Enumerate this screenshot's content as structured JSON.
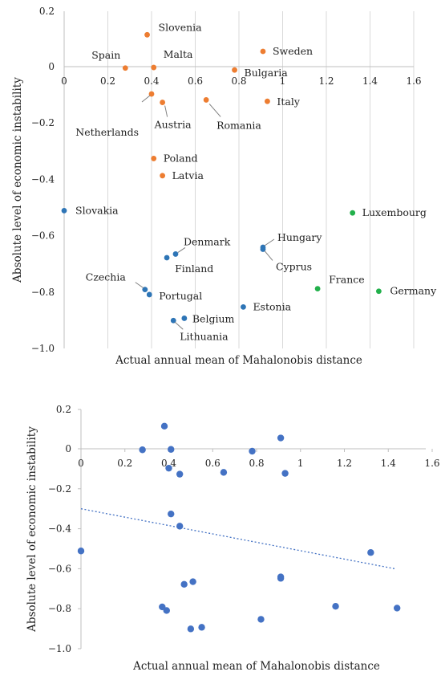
{
  "colors": {
    "cluster_blue": "#2e75b6",
    "cluster_orange": "#ed7d31",
    "cluster_green": "#22b04b",
    "scatter_blue": "#4472c4",
    "trend": "#4472c4"
  },
  "chart_data": [
    {
      "type": "scatter",
      "title": "",
      "xlabel": "Actual annual mean of Mahalonobis distance",
      "ylabel": "Absolute level of economic instability",
      "xlim": [
        0,
        1.6
      ],
      "ylim": [
        -1.0,
        0.2
      ],
      "x_ticks": [
        "0",
        "0.2",
        "0.4",
        "0.6",
        "0.8",
        "1",
        "1.2",
        "1.4",
        "1.6"
      ],
      "y_ticks": [
        "0.2",
        "0",
        "−0.2",
        "−0.4",
        "−0.6",
        "−0.8",
        "−1.0"
      ],
      "grid": "vertical",
      "points": [
        {
          "label": "Slovenia",
          "x": 0.38,
          "y": 0.115,
          "group": "orange"
        },
        {
          "label": "Sweden",
          "x": 0.91,
          "y": 0.055,
          "group": "orange"
        },
        {
          "label": "Spain",
          "x": 0.28,
          "y": -0.005,
          "group": "orange"
        },
        {
          "label": "Malta",
          "x": 0.41,
          "y": -0.003,
          "group": "orange"
        },
        {
          "label": "Bulgaria",
          "x": 0.78,
          "y": -0.012,
          "group": "orange"
        },
        {
          "label": "Netherlands",
          "x": 0.4,
          "y": -0.097,
          "group": "orange"
        },
        {
          "label": "Austria",
          "x": 0.45,
          "y": -0.127,
          "group": "orange"
        },
        {
          "label": "Romania",
          "x": 0.65,
          "y": -0.118,
          "group": "orange"
        },
        {
          "label": "Italy",
          "x": 0.93,
          "y": -0.123,
          "group": "orange"
        },
        {
          "label": "Poland",
          "x": 0.41,
          "y": -0.326,
          "group": "orange"
        },
        {
          "label": "Latvia",
          "x": 0.45,
          "y": -0.387,
          "group": "orange"
        },
        {
          "label": "Slovakia",
          "x": 0.0,
          "y": -0.511,
          "group": "blue"
        },
        {
          "label": "Luxembourg",
          "x": 1.32,
          "y": -0.519,
          "group": "green"
        },
        {
          "label": "Hungary",
          "x": 0.91,
          "y": -0.641,
          "group": "blue"
        },
        {
          "label": "Cyprus",
          "x": 0.91,
          "y": -0.648,
          "group": "blue"
        },
        {
          "label": "Denmark",
          "x": 0.51,
          "y": -0.665,
          "group": "blue"
        },
        {
          "label": "Finland",
          "x": 0.47,
          "y": -0.678,
          "group": "blue"
        },
        {
          "label": "France",
          "x": 1.16,
          "y": -0.788,
          "group": "green"
        },
        {
          "label": "Germany",
          "x": 1.44,
          "y": -0.797,
          "group": "green"
        },
        {
          "label": "Czechia",
          "x": 0.37,
          "y": -0.791,
          "group": "blue"
        },
        {
          "label": "Portugal",
          "x": 0.39,
          "y": -0.809,
          "group": "blue"
        },
        {
          "label": "Estonia",
          "x": 0.82,
          "y": -0.853,
          "group": "blue"
        },
        {
          "label": "Belgium",
          "x": 0.55,
          "y": -0.893,
          "group": "blue"
        },
        {
          "label": "Lithuania",
          "x": 0.5,
          "y": -0.901,
          "group": "blue"
        }
      ]
    },
    {
      "type": "scatter",
      "title": "",
      "xlabel": "Actual annual mean of Mahalonobis distance",
      "ylabel": "Absolute level of economic instability",
      "xlim": [
        0,
        1.6
      ],
      "ylim": [
        -1.0,
        0.2
      ],
      "x_ticks": [
        "0",
        "0.2",
        "0.4",
        "0.6",
        "0.8",
        "1",
        "1.2",
        "1.4",
        "1.6"
      ],
      "y_ticks": [
        "0.2",
        "0",
        "−0.2",
        "−0.4",
        "−0.6",
        "−0.8",
        "−1.0"
      ],
      "grid": "none",
      "trendline": {
        "type": "linear",
        "x": [
          0,
          1.43
        ],
        "y": [
          -0.3,
          -0.6
        ],
        "style": "dotted"
      },
      "points": [
        {
          "x": 0.38,
          "y": 0.115
        },
        {
          "x": 0.91,
          "y": 0.055
        },
        {
          "x": 0.28,
          "y": -0.005
        },
        {
          "x": 0.41,
          "y": -0.003
        },
        {
          "x": 0.78,
          "y": -0.012
        },
        {
          "x": 0.4,
          "y": -0.097
        },
        {
          "x": 0.45,
          "y": -0.127
        },
        {
          "x": 0.65,
          "y": -0.118
        },
        {
          "x": 0.93,
          "y": -0.123
        },
        {
          "x": 0.41,
          "y": -0.326
        },
        {
          "x": 0.45,
          "y": -0.387
        },
        {
          "x": 0.0,
          "y": -0.511
        },
        {
          "x": 1.32,
          "y": -0.519
        },
        {
          "x": 0.91,
          "y": -0.641
        },
        {
          "x": 0.91,
          "y": -0.648
        },
        {
          "x": 0.51,
          "y": -0.665
        },
        {
          "x": 0.47,
          "y": -0.678
        },
        {
          "x": 1.16,
          "y": -0.788
        },
        {
          "x": 1.44,
          "y": -0.797
        },
        {
          "x": 0.37,
          "y": -0.791
        },
        {
          "x": 0.39,
          "y": -0.809
        },
        {
          "x": 0.82,
          "y": -0.853
        },
        {
          "x": 0.55,
          "y": -0.893
        },
        {
          "x": 0.5,
          "y": -0.901
        }
      ]
    }
  ]
}
